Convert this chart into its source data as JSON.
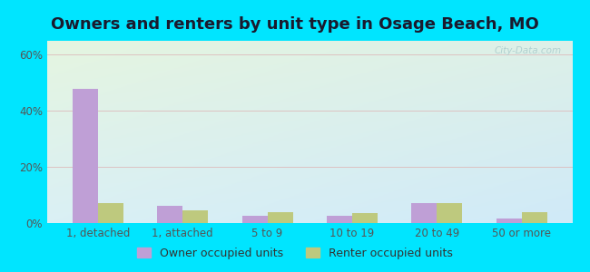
{
  "title": "Owners and renters by unit type in Osage Beach, MO",
  "categories": [
    "1, detached",
    "1, attached",
    "5 to 9",
    "10 to 19",
    "20 to 49",
    "50 or more"
  ],
  "owner_values": [
    48,
    6,
    2.5,
    2.5,
    7,
    1.5
  ],
  "renter_values": [
    7,
    4.5,
    4,
    3.5,
    7,
    4
  ],
  "owner_color": "#bf9fd6",
  "renter_color": "#bec97e",
  "background_outer": "#00e5ff",
  "grad_top_left": "#e8f5e2",
  "grad_bottom_right": "#d0eef5",
  "ylabel_ticks": [
    "0%",
    "20%",
    "40%",
    "60%"
  ],
  "ytick_values": [
    0,
    20,
    40,
    60
  ],
  "ylim": [
    0,
    65
  ],
  "legend_owner": "Owner occupied units",
  "legend_renter": "Renter occupied units",
  "title_fontsize": 13,
  "tick_fontsize": 8.5,
  "legend_fontsize": 9,
  "watermark": "City-Data.com"
}
